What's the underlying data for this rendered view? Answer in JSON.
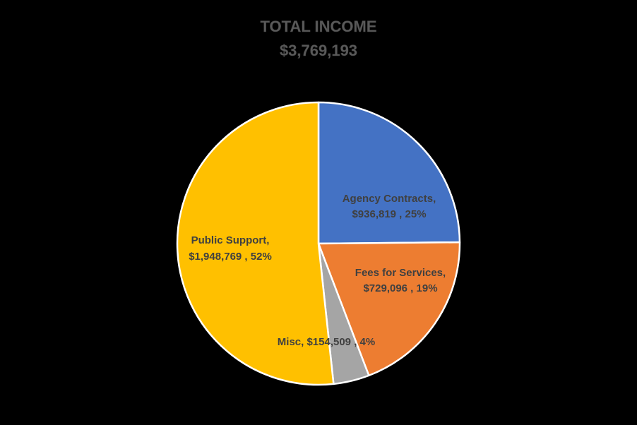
{
  "chart_data": {
    "type": "pie",
    "title": "TOTAL INCOME",
    "subtitle": "$3,769,193",
    "start_angle_deg": 0,
    "direction": "clockwise",
    "slices": [
      {
        "category": "Agency Contracts",
        "value": 936819,
        "percent": 25,
        "color": "#4472C4",
        "label_line1": "Agency Contracts,",
        "label_line2": "$936,819 , 25%"
      },
      {
        "category": "Fees for Services",
        "value": 729096,
        "percent": 19,
        "color": "#ED7D31",
        "label_line1": "Fees for Services,",
        "label_line2": "$729,096 , 19%"
      },
      {
        "category": "Misc",
        "value": 154509,
        "percent": 4,
        "color": "#A5A5A5",
        "label_line1": "Misc,  $154,509 , 4%",
        "label_line2": ""
      },
      {
        "category": "Public Support",
        "value": 1948769,
        "percent": 52,
        "color": "#FFC000",
        "label_line1": "Public Support,",
        "label_line2": "$1,948,769 , 52%"
      }
    ]
  }
}
